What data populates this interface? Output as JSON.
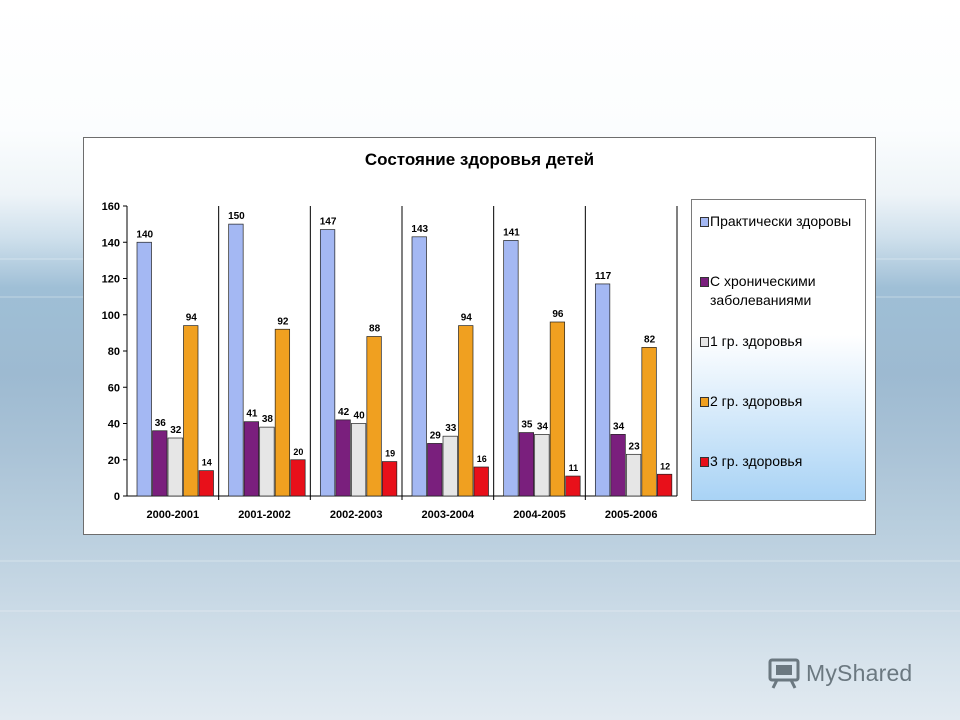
{
  "chart_data": {
    "type": "bar",
    "title": "Состояние здоровья детей",
    "categories": [
      "2000-2001",
      "2001-2002",
      "2002-2003",
      "2003-2004",
      "2004-2005",
      "2005-2006"
    ],
    "series": [
      {
        "name": "Практически здоровы",
        "color": "#a4b8f3",
        "values": [
          140,
          150,
          147,
          143,
          141,
          117
        ]
      },
      {
        "name": "С хроническими заболеваниями",
        "color": "#7a1f7d",
        "values": [
          36,
          41,
          42,
          29,
          35,
          34
        ]
      },
      {
        "name": "1 гр. здоровья",
        "color": "#e6e6e6",
        "values": [
          32,
          38,
          40,
          33,
          34,
          23
        ]
      },
      {
        "name": "2 гр. здоровья",
        "color": "#f0a020",
        "values": [
          94,
          92,
          88,
          94,
          96,
          82
        ]
      },
      {
        "name": "3 гр. здоровья",
        "color": "#e8101a",
        "values": [
          14,
          20,
          19,
          16,
          11,
          12
        ]
      }
    ],
    "ylim": [
      0,
      160
    ],
    "yticks": [
      0,
      20,
      40,
      60,
      80,
      100,
      120,
      140,
      160
    ],
    "legend_position": "right",
    "grid": false
  },
  "legend": {
    "items": [
      {
        "label": "Практически здоровы"
      },
      {
        "label": "С хроническими заболеваниями"
      },
      {
        "label": "1 гр. здоровья"
      },
      {
        "label": "2 гр. здоровья"
      },
      {
        "label": "3 гр. здоровья"
      }
    ]
  },
  "watermark": {
    "text": "MyShared"
  }
}
